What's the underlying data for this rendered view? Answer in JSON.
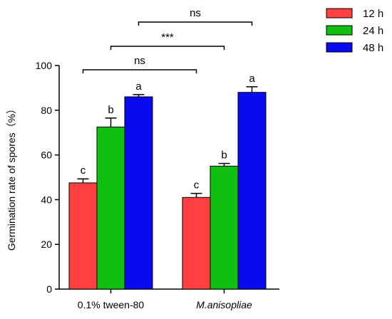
{
  "chart_data": {
    "type": "bar",
    "categories": [
      "0.1% tween-80",
      "M.anisopliae"
    ],
    "category_italic": [
      false,
      true
    ],
    "series": [
      {
        "name": "12 h",
        "color": "#ff4040",
        "values": [
          47.5,
          41.0
        ],
        "errors": [
          1.8,
          1.8
        ],
        "letters": [
          "c",
          "c"
        ]
      },
      {
        "name": "24 h",
        "color": "#10c010",
        "values": [
          72.5,
          55.0
        ],
        "errors": [
          4.0,
          1.2
        ],
        "letters": [
          "b",
          "b"
        ]
      },
      {
        "name": "48 h",
        "color": "#0a0aef",
        "values": [
          86.0,
          88.0
        ],
        "errors": [
          1.0,
          2.5
        ],
        "letters": [
          "a",
          "a"
        ]
      }
    ],
    "ylabel": "Germination rate of spores（%）",
    "xlabel": "",
    "ylim": [
      0,
      100
    ],
    "yticks": [
      0,
      20,
      40,
      60,
      80,
      100
    ],
    "legend_position": "top-right",
    "significance": [
      {
        "from": [
          0,
          0
        ],
        "to": [
          1,
          0
        ],
        "label": "ns"
      },
      {
        "from": [
          0,
          1
        ],
        "to": [
          1,
          1
        ],
        "label": "***"
      },
      {
        "from": [
          0,
          2
        ],
        "to": [
          1,
          2
        ],
        "label": "ns"
      }
    ]
  }
}
